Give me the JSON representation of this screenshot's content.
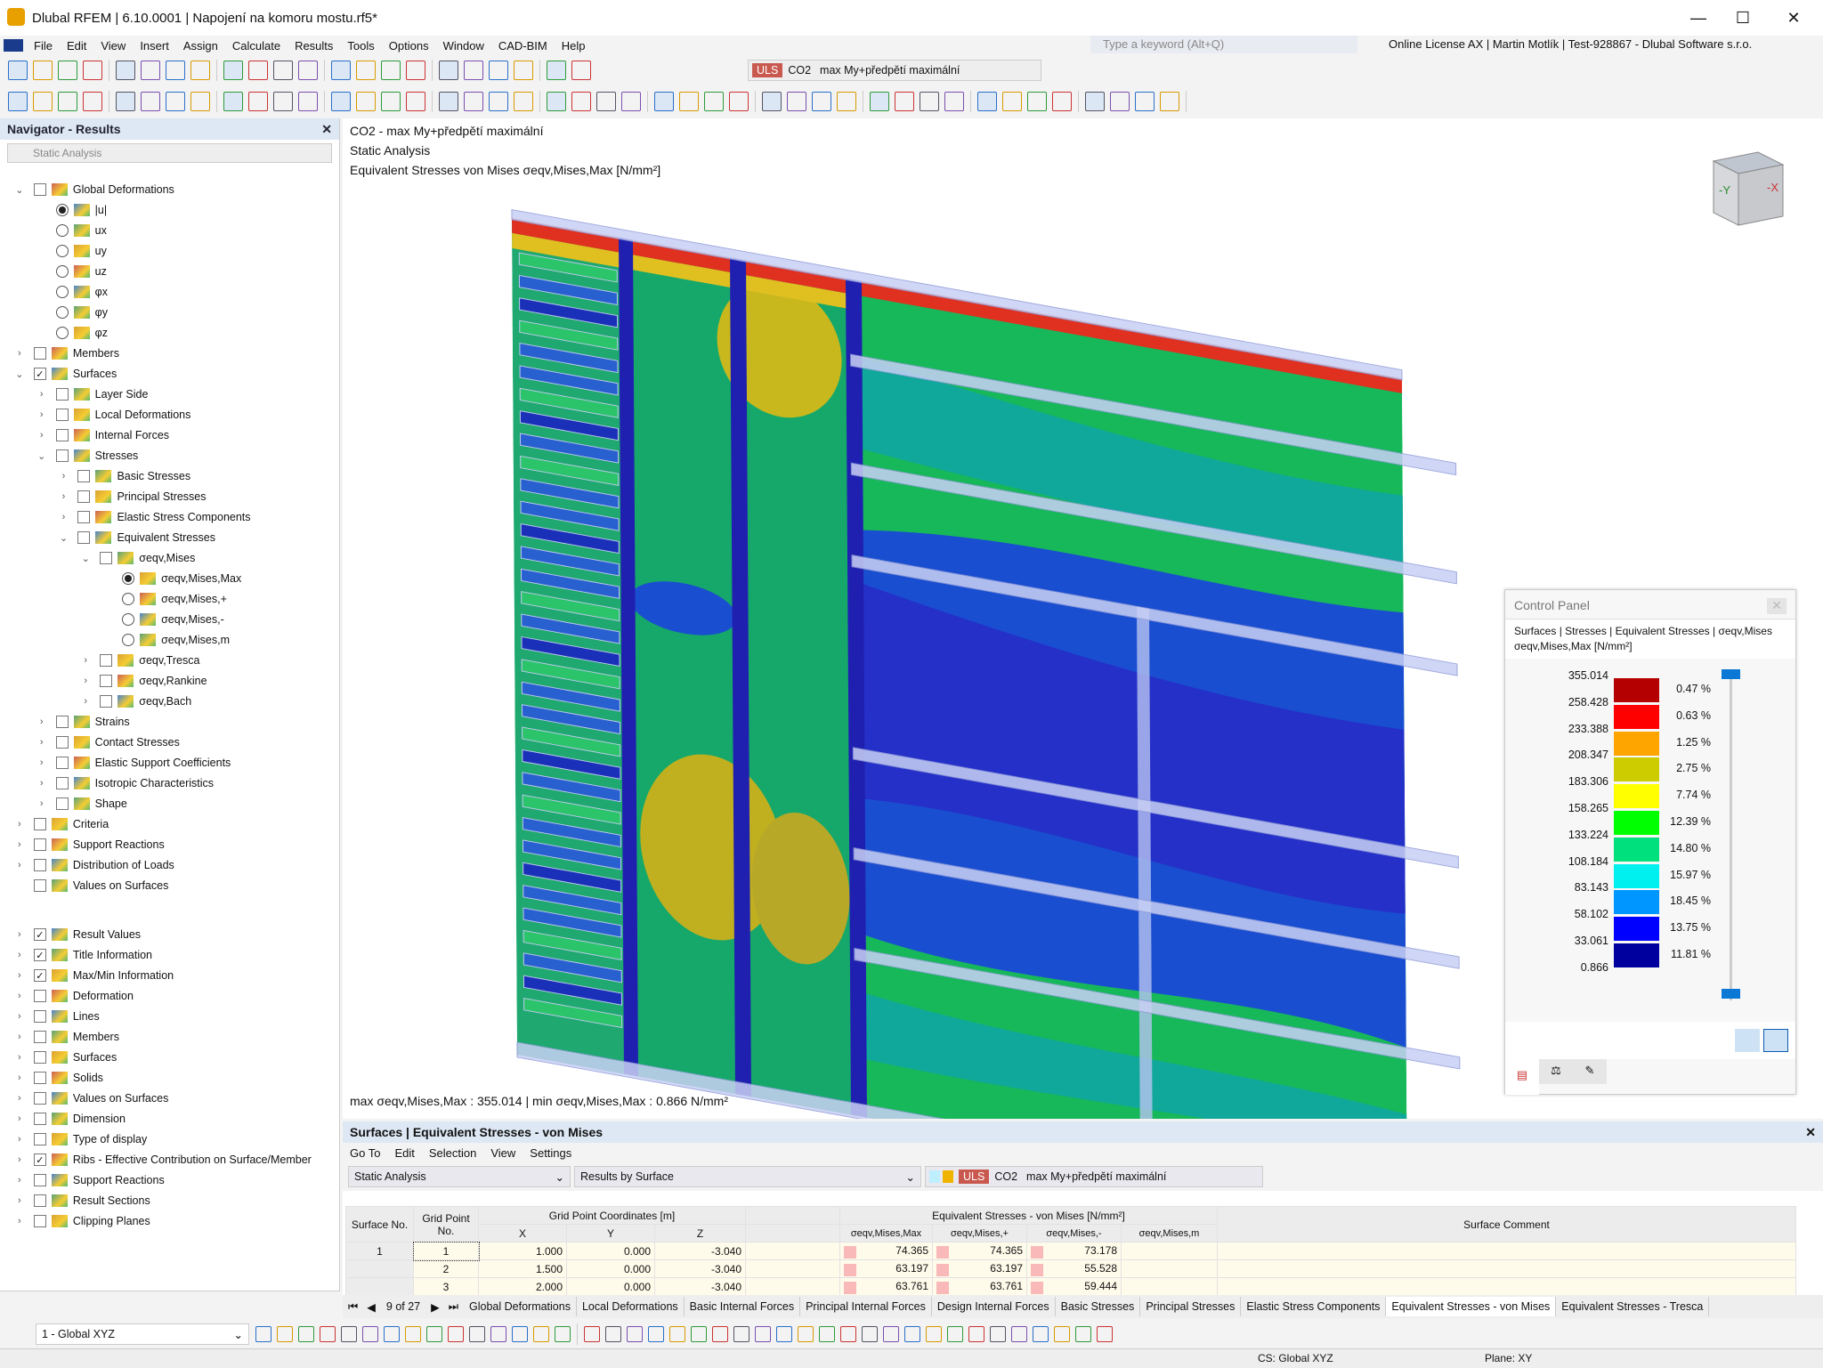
{
  "app": {
    "title": "Dlubal RFEM | 6.10.0001 | Napojení na komoru mostu.rf5*",
    "search_placeholder": "Type a keyword (Alt+Q)",
    "license": "Online License AX | Martin Motlík | Test-928867 - Dlubal Software s.r.o."
  },
  "menu": [
    "File",
    "Edit",
    "View",
    "Insert",
    "Assign",
    "Calculate",
    "Results",
    "Tools",
    "Options",
    "Window",
    "CAD-BIM",
    "Help"
  ],
  "toolbar": {
    "uls": "ULS",
    "co": "CO2",
    "combo": "max My+předpětí maximální",
    "icons1": [
      "open-icon",
      "save-icon",
      "print-icon",
      "undo-icon",
      "redo-icon",
      "table-icon",
      "view-icon",
      "filter-icon",
      "results-icon",
      "values-icon",
      "section-icon",
      "render-icon",
      "axis-x-icon",
      "axis-y-icon",
      "axis-z-icon",
      "settings-icon"
    ],
    "icons2": [
      "node-icon",
      "line-icon",
      "member-icon",
      "surface-icon",
      "solid-icon",
      "support-icon",
      "load-icon",
      "mesh-icon",
      "grid-icon",
      "snap-icon",
      "measure-icon",
      "delete-icon",
      "copy-icon",
      "mirror-icon",
      "rotate-icon",
      "scale-icon",
      "color-icon",
      "clipping-icon"
    ]
  },
  "navigator": {
    "title": "Navigator - Results",
    "combo": "Static Analysis",
    "items": [
      {
        "label": "Global Deformations",
        "level": 0,
        "type": "check",
        "checked": false,
        "exp": "open"
      },
      {
        "label": "|u|",
        "level": 1,
        "type": "radio",
        "checked": true
      },
      {
        "label": "ux",
        "level": 1,
        "type": "radio"
      },
      {
        "label": "uy",
        "level": 1,
        "type": "radio"
      },
      {
        "label": "uz",
        "level": 1,
        "type": "radio"
      },
      {
        "label": "φx",
        "level": 1,
        "type": "radio"
      },
      {
        "label": "φy",
        "level": 1,
        "type": "radio"
      },
      {
        "label": "φz",
        "level": 1,
        "type": "radio"
      },
      {
        "label": "Members",
        "level": 0,
        "type": "check",
        "exp": "closed"
      },
      {
        "label": "Surfaces",
        "level": 0,
        "type": "check",
        "checked": true,
        "exp": "open"
      },
      {
        "label": "Layer Side",
        "level": 1,
        "type": "check",
        "exp": "closed"
      },
      {
        "label": "Local Deformations",
        "level": 1,
        "type": "check",
        "exp": "closed"
      },
      {
        "label": "Internal Forces",
        "level": 1,
        "type": "check",
        "exp": "closed"
      },
      {
        "label": "Stresses",
        "level": 1,
        "type": "check",
        "exp": "open"
      },
      {
        "label": "Basic Stresses",
        "level": 2,
        "type": "check",
        "exp": "closed"
      },
      {
        "label": "Principal Stresses",
        "level": 2,
        "type": "check",
        "exp": "closed"
      },
      {
        "label": "Elastic Stress Components",
        "level": 2,
        "type": "check",
        "exp": "closed"
      },
      {
        "label": "Equivalent Stresses",
        "level": 2,
        "type": "check",
        "exp": "open"
      },
      {
        "label": "σeqv,Mises",
        "level": 3,
        "type": "check",
        "exp": "open"
      },
      {
        "label": "σeqv,Mises,Max",
        "level": 4,
        "type": "radio",
        "checked": true
      },
      {
        "label": "σeqv,Mises,+",
        "level": 4,
        "type": "radio"
      },
      {
        "label": "σeqv,Mises,-",
        "level": 4,
        "type": "radio"
      },
      {
        "label": "σeqv,Mises,m",
        "level": 4,
        "type": "radio"
      },
      {
        "label": "σeqv,Tresca",
        "level": 3,
        "type": "check",
        "exp": "closed"
      },
      {
        "label": "σeqv,Rankine",
        "level": 3,
        "type": "check",
        "exp": "closed"
      },
      {
        "label": "σeqv,Bach",
        "level": 3,
        "type": "check",
        "exp": "closed"
      },
      {
        "label": "Strains",
        "level": 1,
        "type": "check",
        "exp": "closed"
      },
      {
        "label": "Contact Stresses",
        "level": 1,
        "type": "check",
        "exp": "closed"
      },
      {
        "label": "Elastic Support Coefficients",
        "level": 1,
        "type": "check",
        "exp": "closed"
      },
      {
        "label": "Isotropic Characteristics",
        "level": 1,
        "type": "check",
        "exp": "closed"
      },
      {
        "label": "Shape",
        "level": 1,
        "type": "check",
        "exp": "closed"
      },
      {
        "label": "Criteria",
        "level": 0,
        "type": "check",
        "exp": "closed"
      },
      {
        "label": "Support Reactions",
        "level": 0,
        "type": "check",
        "exp": "closed"
      },
      {
        "label": "Distribution of Loads",
        "level": 0,
        "type": "check",
        "exp": "closed"
      },
      {
        "label": "Values on Surfaces",
        "level": 0,
        "type": "check"
      }
    ],
    "items2": [
      {
        "label": "Result Values",
        "checked": true
      },
      {
        "label": "Title Information",
        "checked": true
      },
      {
        "label": "Max/Min Information",
        "checked": true
      },
      {
        "label": "Deformation"
      },
      {
        "label": "Lines"
      },
      {
        "label": "Members"
      },
      {
        "label": "Surfaces"
      },
      {
        "label": "Solids"
      },
      {
        "label": "Values on Surfaces"
      },
      {
        "label": "Dimension"
      },
      {
        "label": "Type of display"
      },
      {
        "label": "Ribs - Effective Contribution on Surface/Member",
        "checked": true
      },
      {
        "label": "Support Reactions"
      },
      {
        "label": "Result Sections"
      },
      {
        "label": "Clipping Planes"
      }
    ]
  },
  "viewport": {
    "line1": "CO2 - max My+předpětí maximální",
    "line2": "Static Analysis",
    "line3": "Equivalent Stresses von Mises σeqv,Mises,Max [N/mm²]",
    "footer": "max σeqv,Mises,Max : 355.014 | min σeqv,Mises,Max : 0.866 N/mm²",
    "cube_labels": [
      "-Y",
      "-X"
    ]
  },
  "control_panel": {
    "title": "Control Panel",
    "subtitle1": "Surfaces | Stresses | Equivalent Stresses | σeqv,Mises",
    "subtitle2": "σeqv,Mises,Max [N/mm²]",
    "levels": [
      "355.014",
      "258.428",
      "233.388",
      "208.347",
      "183.306",
      "158.265",
      "133.224",
      "108.184",
      "83.143",
      "58.102",
      "33.061",
      "0.866"
    ],
    "colors": [
      "#b40000",
      "#ff0000",
      "#ffa500",
      "#cccc00",
      "#ffff00",
      "#00ff00",
      "#00e07c",
      "#00f0f0",
      "#0096ff",
      "#0000ff",
      "#00009e"
    ],
    "percents": [
      "0.47 %",
      "0.63 %",
      "1.25 %",
      "2.75 %",
      "7.74 %",
      "12.39 %",
      "14.80 %",
      "15.97 %",
      "18.45 %",
      "13.75 %",
      "11.81 %"
    ]
  },
  "table": {
    "title": "Surfaces | Equivalent Stresses - von Mises",
    "menu": [
      "Go To",
      "Edit",
      "Selection",
      "View",
      "Settings"
    ],
    "combo1": "Static Analysis",
    "combo2": "Results by Surface",
    "uls": "ULS",
    "co": "CO2",
    "combo3": "max My+předpětí maximální",
    "headers": {
      "surface": "Surface No.",
      "grid": "Grid Point No.",
      "coords": "Grid Point Coordinates [m]",
      "x": "X",
      "y": "Y",
      "z": "Z",
      "stresses": "Equivalent Stresses - von Mises [N/mm²]",
      "s1": "σeqv,Mises,Max",
      "s2": "σeqv,Mises,+",
      "s3": "σeqv,Mises,-",
      "s4": "σeqv,Mises,m",
      "comment": "Surface Comment"
    },
    "rows": [
      {
        "surface": "1",
        "grid": "1",
        "x": "1.000",
        "y": "0.000",
        "z": "-3.040",
        "s1": "74.365",
        "s2": "74.365",
        "s3": "73.178"
      },
      {
        "surface": "",
        "grid": "2",
        "x": "1.500",
        "y": "0.000",
        "z": "-3.040",
        "s1": "63.197",
        "s2": "63.197",
        "s3": "55.528"
      },
      {
        "surface": "",
        "grid": "3",
        "x": "2.000",
        "y": "0.000",
        "z": "-3.040",
        "s1": "63.761",
        "s2": "63.761",
        "s3": "59.444"
      }
    ],
    "pager": "9 of 27",
    "tabs": [
      "Global Deformations",
      "Local Deformations",
      "Basic Internal Forces",
      "Principal Internal Forces",
      "Design Internal Forces",
      "Basic Stresses",
      "Principal Stresses",
      "Elastic Stress Components",
      "Equivalent Stresses - von Mises",
      "Equivalent Stresses - Tresca"
    ],
    "active_tab": 8
  },
  "bottom": {
    "cs_combo": "1 - Global XYZ",
    "cs": "CS: Global XYZ",
    "plane": "Plane: XY"
  }
}
